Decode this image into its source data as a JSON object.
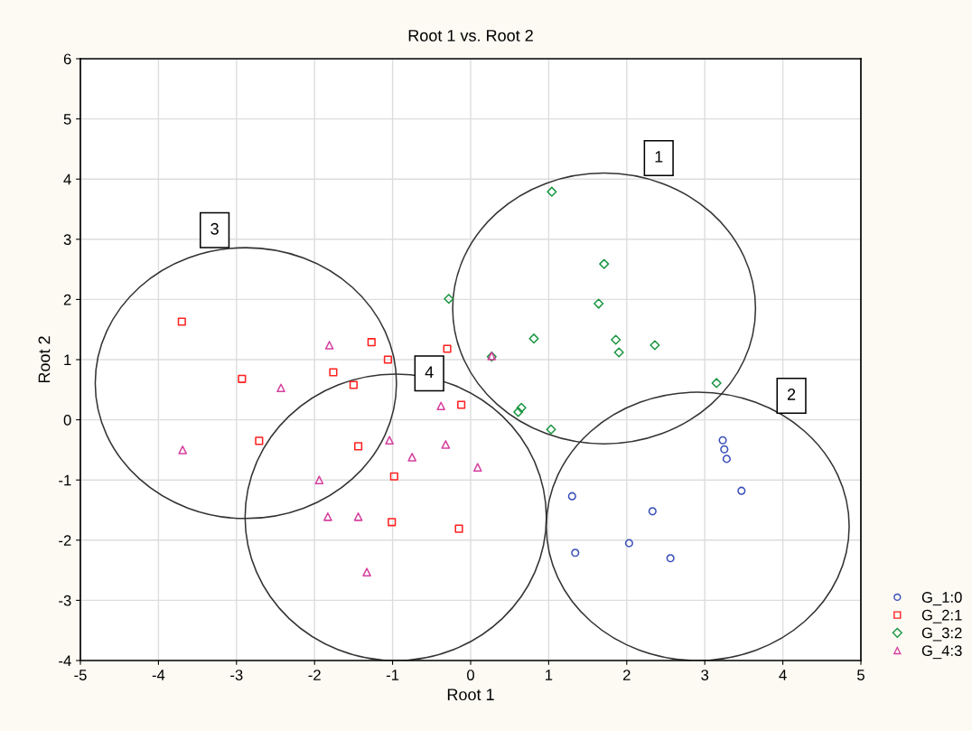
{
  "chart_data": {
    "type": "scatter",
    "title": "Root 1 vs. Root 2",
    "xlabel": "Root 1",
    "ylabel": "Root 2",
    "xlim": [
      -5,
      5
    ],
    "xticks": [
      -5,
      -4,
      -3,
      -2,
      -1,
      0,
      1,
      2,
      3,
      4,
      5
    ],
    "ylim": [
      -4,
      6
    ],
    "yticks": [
      -4,
      -3,
      -2,
      -1,
      0,
      1,
      2,
      3,
      4,
      5,
      6
    ],
    "grid": true,
    "legend": "bottom right",
    "series": [
      {
        "name": "G_1:0",
        "color": "#3a4fb8",
        "marker": "circle",
        "x": [
          1.3,
          1.34,
          2.33,
          2.03,
          2.56,
          3.23,
          3.25,
          3.28,
          3.47
        ],
        "values": [
          -1.27,
          -2.21,
          -1.52,
          -2.05,
          -2.3,
          -0.34,
          -0.49,
          -0.65,
          -1.18
        ]
      },
      {
        "name": "G_2:1",
        "color": "#ff2020",
        "marker": "square",
        "x": [
          -3.7,
          -2.93,
          -2.71,
          -1.76,
          -1.27,
          -1.06,
          -1.5,
          -1.44,
          -0.98,
          -1.01,
          -0.3,
          -0.12,
          -0.15
        ],
        "values": [
          1.63,
          0.68,
          -0.35,
          0.79,
          1.29,
          1.0,
          0.58,
          -0.44,
          -0.94,
          -1.7,
          1.18,
          0.25,
          -1.81
        ]
      },
      {
        "name": "G_3:2",
        "color": "#1a9641",
        "marker": "diamond",
        "x": [
          1.04,
          1.71,
          1.64,
          -0.28,
          0.81,
          1.86,
          1.9,
          2.36,
          0.27,
          0.65,
          0.61,
          1.03,
          3.15
        ],
        "values": [
          3.79,
          2.59,
          1.93,
          2.01,
          1.35,
          1.33,
          1.12,
          1.24,
          1.05,
          0.2,
          0.13,
          -0.16,
          0.61
        ]
      },
      {
        "name": "G_4:3",
        "color": "#d6409f",
        "marker": "triangle",
        "x": [
          -3.69,
          -2.43,
          -1.81,
          -1.94,
          -1.83,
          -1.44,
          -1.04,
          -0.75,
          -1.33,
          -0.38,
          -0.32,
          0.09,
          0.27
        ],
        "values": [
          -0.5,
          0.53,
          1.24,
          -1.0,
          -1.61,
          -1.61,
          -0.34,
          -0.62,
          -2.53,
          0.23,
          -0.41,
          -0.79,
          1.06
        ]
      }
    ],
    "annotations": [
      {
        "text": "1",
        "x": 2.41,
        "y": 4.35
      },
      {
        "text": "2",
        "x": 4.11,
        "y": 0.4
      },
      {
        "text": "3",
        "x": -3.28,
        "y": 3.15
      },
      {
        "text": "4",
        "x": -0.53,
        "y": 0.77
      }
    ]
  }
}
